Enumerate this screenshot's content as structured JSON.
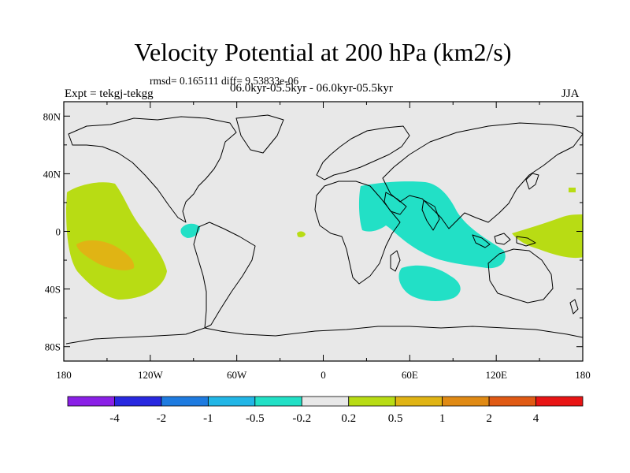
{
  "title": "Velocity Potential at 200 hPa (km2/s)",
  "stats": "rmsd= 0.165111 diff= 9.53833e-06",
  "expt": "Expt = tekgj-tekgg",
  "period": "06.0kyr-05.5kyr - 06.0kyr-05.5kyr",
  "season": "JJA",
  "lat_axis": {
    "labels": [
      "80N",
      "40N",
      "0",
      "40S",
      "80S"
    ],
    "values": [
      80,
      40,
      0,
      -40,
      -80
    ]
  },
  "lon_axis": {
    "labels": [
      "180",
      "120W",
      "60W",
      "0",
      "60E",
      "120E",
      "180"
    ],
    "values": [
      -180,
      -120,
      -60,
      0,
      60,
      120,
      180
    ]
  },
  "colorbar": {
    "colors": [
      "#8a20e6",
      "#2828e0",
      "#1e7be0",
      "#22b6e6",
      "#22e0c6",
      "#e8e8e8",
      "#b8dc14",
      "#e0b414",
      "#e08a14",
      "#e05a14",
      "#e81414"
    ],
    "labels": [
      "-4",
      "-2",
      "-1",
      "-0.5",
      "-0.2",
      "0.2",
      "0.5",
      "1",
      "2",
      "4"
    ]
  },
  "fields": [
    {
      "name": "central-pacific-positive",
      "level": "0.5",
      "color": "#b8dc14"
    },
    {
      "name": "central-pacific-positive-core",
      "level": "1",
      "color": "#e0b414"
    },
    {
      "name": "asia-indian-ocean-negative",
      "level": "-0.2",
      "color": "#22e0c6"
    },
    {
      "name": "south-indian-ocean-negative",
      "level": "-0.2",
      "color": "#22e0c6"
    },
    {
      "name": "east-pacific-negative",
      "level": "-0.2",
      "color": "#22e0c6"
    },
    {
      "name": "atlantic-positive",
      "level": "0.5",
      "color": "#b8dc14"
    },
    {
      "name": "west-pacific-positive",
      "level": "0.5",
      "color": "#b8dc14"
    },
    {
      "name": "north-pacific-positive",
      "level": "0.5",
      "color": "#b8dc14"
    }
  ]
}
